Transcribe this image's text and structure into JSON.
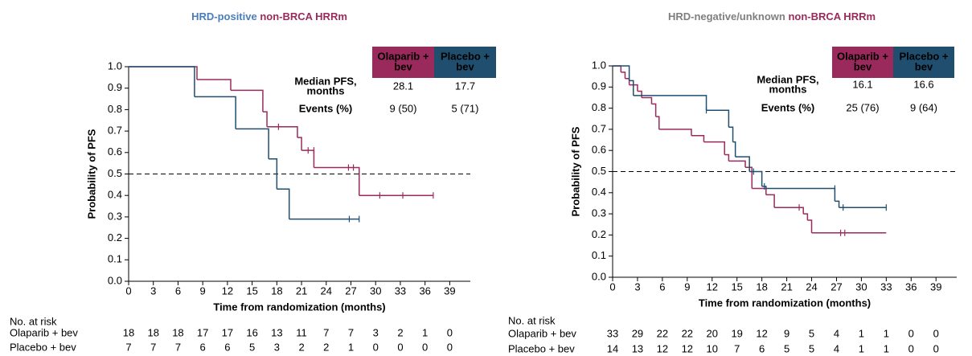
{
  "chart_data": [
    {
      "type": "km",
      "title_parts": [
        {
          "text": "HRD-positive",
          "color": "#4a7ebb"
        },
        {
          "text": " non-BRCA HRRm",
          "color": "#9b2a5c"
        }
      ],
      "ylabel": "Probability of PFS",
      "xlabel": "Time from randomization (months)",
      "xlim": [
        0,
        41.5
      ],
      "ylim": [
        0,
        1
      ],
      "xticks": [
        0,
        3,
        6,
        9,
        12,
        15,
        18,
        21,
        24,
        27,
        30,
        33,
        36,
        39
      ],
      "yticks": [
        {
          "value": 0,
          "label": "0.0"
        },
        0.1,
        0.2,
        0.3,
        0.4,
        0.5,
        0.6,
        0.7,
        0.8,
        0.9,
        {
          "value": 1,
          "label": "1.0"
        }
      ],
      "reference_line": 0.5,
      "series": [
        {
          "name": "Olaparib + bev",
          "color": "#9b2a5c",
          "x": [
            0,
            8.3,
            12.4,
            16.3,
            16.8,
            20.5,
            21,
            22.5,
            28,
            37
          ],
          "values": [
            1,
            0.94,
            0.89,
            0.79,
            0.72,
            0.67,
            0.61,
            0.53,
            0.4,
            0.4
          ],
          "censor_x": [
            18.2,
            21.8,
            22.5,
            26.7,
            27.3,
            30.5,
            33.3,
            37
          ],
          "censor_values": [
            0.72,
            0.61,
            0.61,
            0.53,
            0.53,
            0.4,
            0.4,
            0.4
          ],
          "at_risk": [
            18,
            18,
            18,
            17,
            17,
            16,
            13,
            11,
            7,
            7,
            3,
            2,
            1,
            0
          ]
        },
        {
          "name": "Placebo + bev",
          "color": "#1f4e6e",
          "x": [
            0,
            8,
            13,
            17,
            18,
            19.5,
            28
          ],
          "values": [
            1,
            0.86,
            0.71,
            0.57,
            0.43,
            0.29,
            0.29
          ],
          "censor_x": [
            26.8,
            28
          ],
          "censor_values": [
            0.29,
            0.29
          ],
          "at_risk": [
            7,
            7,
            7,
            6,
            6,
            5,
            3,
            2,
            2,
            1,
            0,
            0,
            0,
            0
          ]
        }
      ],
      "table": {
        "headers": [
          [
            "Olaparib +",
            "bev"
          ],
          [
            "Placebo +",
            "bev"
          ]
        ],
        "rows": [
          {
            "label": [
              "Median PFS,",
              "months"
            ],
            "cells": [
              "28.1",
              "17.7"
            ]
          },
          {
            "label": [
              "Events (%)"
            ],
            "cells": [
              "9 (50)",
              "5 (71)"
            ]
          }
        ]
      },
      "at_risk_title": "No. at risk"
    },
    {
      "type": "km",
      "title_parts": [
        {
          "text": "HRD-negative/unknown",
          "color": "#7f7f7f"
        },
        {
          "text": " non-BRCA HRRm",
          "color": "#9b2a5c"
        }
      ],
      "ylabel": "Probability of PFS",
      "xlabel": "Time from randomization (months)",
      "xlim": [
        0,
        41.5
      ],
      "ylim": [
        0,
        1
      ],
      "xticks": [
        0,
        3,
        6,
        9,
        12,
        15,
        18,
        21,
        24,
        27,
        30,
        33,
        36,
        39
      ],
      "yticks": [
        {
          "value": 0,
          "label": "0.0"
        },
        0.1,
        0.2,
        0.3,
        0.4,
        0.5,
        0.6,
        0.7,
        0.8,
        0.9,
        {
          "value": 1,
          "label": "1.0"
        }
      ],
      "reference_line": 0.5,
      "series": [
        {
          "name": "Olaparib + bev",
          "color": "#9b2a5c",
          "x": [
            0,
            1,
            1.5,
            2,
            3,
            3.5,
            4.7,
            5.2,
            5.6,
            9.5,
            11,
            13.5,
            14,
            16,
            16.8,
            18.5,
            19.5,
            23,
            23.5,
            24,
            33
          ],
          "values": [
            1,
            0.97,
            0.94,
            0.91,
            0.88,
            0.85,
            0.82,
            0.76,
            0.7,
            0.67,
            0.64,
            0.58,
            0.55,
            0.52,
            0.42,
            0.39,
            0.33,
            0.3,
            0.27,
            0.21,
            0.21
          ],
          "censor_x": [
            16.5,
            22.5,
            27.5,
            28
          ],
          "censor_values": [
            0.52,
            0.33,
            0.21,
            0.21
          ],
          "at_risk": [
            33,
            29,
            22,
            22,
            20,
            19,
            12,
            9,
            5,
            4,
            1,
            1,
            0,
            0
          ]
        },
        {
          "name": "Placebo + bev",
          "color": "#1f4e6e",
          "x": [
            0,
            2,
            2.5,
            11.3,
            14,
            14.5,
            14.8,
            16.5,
            18,
            18.5,
            26.8,
            27.3,
            33
          ],
          "values": [
            1,
            0.93,
            0.86,
            0.79,
            0.71,
            0.64,
            0.57,
            0.5,
            0.43,
            0.42,
            0.36,
            0.33,
            0.33
          ],
          "censor_x": [
            11.3,
            17,
            18.3,
            26.8,
            27.8,
            33
          ],
          "censor_values": [
            0.79,
            0.5,
            0.43,
            0.42,
            0.33,
            0.33
          ],
          "at_risk": [
            14,
            13,
            12,
            12,
            10,
            7,
            6,
            5,
            5,
            4,
            1,
            1,
            0,
            0
          ]
        }
      ],
      "table": {
        "headers": [
          [
            "Olaparib +",
            "bev"
          ],
          [
            "Placebo +",
            "bev"
          ]
        ],
        "rows": [
          {
            "label": [
              "Median PFS,",
              "months"
            ],
            "cells": [
              "16.1",
              "16.6"
            ]
          },
          {
            "label": [
              "Events (%)"
            ],
            "cells": [
              "25 (76)",
              "9 (64)"
            ]
          }
        ]
      },
      "at_risk_title": "No. at risk"
    }
  ]
}
